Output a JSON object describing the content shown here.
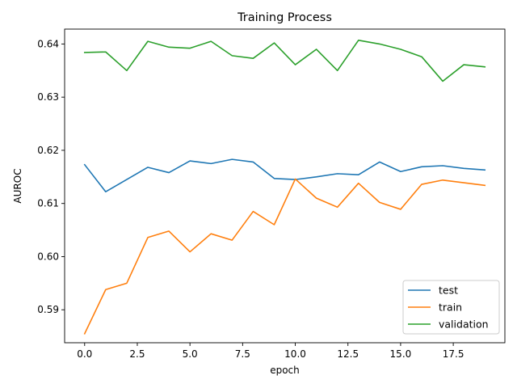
{
  "chart_data": {
    "type": "line",
    "title": "Training Process",
    "xlabel": "epoch",
    "ylabel": "AUROC",
    "x": [
      0,
      1,
      2,
      3,
      4,
      5,
      6,
      7,
      8,
      9,
      10,
      11,
      12,
      13,
      14,
      15,
      16,
      17,
      18,
      19
    ],
    "xlim": [
      -0.95,
      19.95
    ],
    "ylim": [
      0.5838,
      0.6428
    ],
    "xticks": [
      0.0,
      2.5,
      5.0,
      7.5,
      10.0,
      12.5,
      15.0,
      17.5
    ],
    "xtick_labels": [
      "0.0",
      "2.5",
      "5.0",
      "7.5",
      "10.0",
      "12.5",
      "15.0",
      "17.5"
    ],
    "yticks": [
      0.59,
      0.6,
      0.61,
      0.62,
      0.63,
      0.64
    ],
    "ytick_labels": [
      "0.59",
      "0.60",
      "0.61",
      "0.62",
      "0.63",
      "0.64"
    ],
    "grid": false,
    "legend": "lower-right",
    "series": [
      {
        "name": "test",
        "color": "#1f77b4",
        "values": [
          0.6173,
          0.6122,
          0.6145,
          0.6168,
          0.6158,
          0.618,
          0.6175,
          0.6183,
          0.6178,
          0.6147,
          0.6145,
          0.615,
          0.6156,
          0.6154,
          0.6178,
          0.616,
          0.6169,
          0.6171,
          0.6166,
          0.6163
        ]
      },
      {
        "name": "train",
        "color": "#ff7f0e",
        "values": [
          0.5855,
          0.5938,
          0.595,
          0.6036,
          0.6048,
          0.6009,
          0.6043,
          0.6031,
          0.6085,
          0.606,
          0.6146,
          0.611,
          0.6093,
          0.6138,
          0.6102,
          0.6089,
          0.6136,
          0.6144,
          0.6139,
          0.6134
        ]
      },
      {
        "name": "validation",
        "color": "#2ca02c",
        "values": [
          0.6384,
          0.6385,
          0.635,
          0.6405,
          0.6394,
          0.6392,
          0.6405,
          0.6378,
          0.6373,
          0.6402,
          0.6361,
          0.639,
          0.635,
          0.6407,
          0.64,
          0.639,
          0.6376,
          0.633,
          0.6361,
          0.6357
        ]
      }
    ]
  }
}
